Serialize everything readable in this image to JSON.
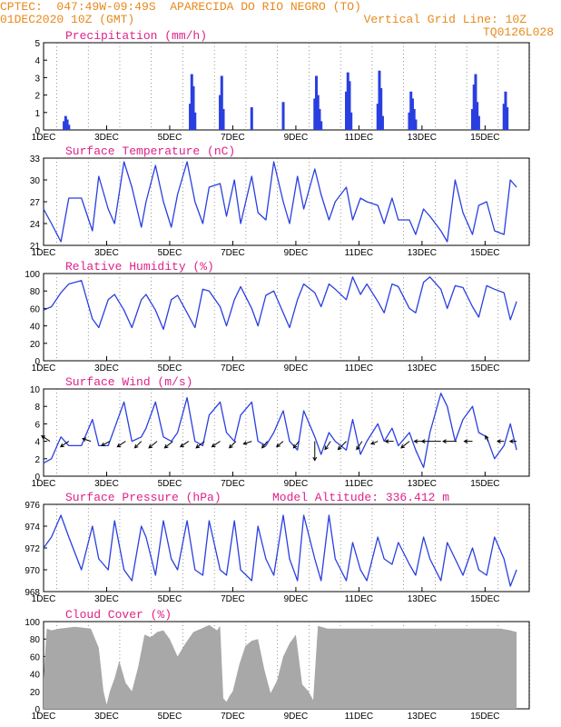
{
  "header": {
    "line1_left": "CPTEC:  047:49W-09:49S  APARECIDA DO RIO NEGRO (TO)",
    "line2_left": "01DEC2020 10Z (GMT)",
    "line2_right": "Vertical Grid Line: 10Z",
    "line3_right": "TQ0126L028"
  },
  "colors": {
    "header": "#e8891c",
    "title": "#e0218a",
    "series": "#2a3fe0",
    "cloud": "#a8a8a8"
  },
  "chart_data": [
    {
      "type": "bar",
      "title": "Precipitation (mm/h)",
      "ylim": [
        0,
        5
      ],
      "yticks": [
        "0",
        "1",
        "2",
        "3",
        "4",
        "5"
      ],
      "xticks": [
        "1DEC",
        "3DEC",
        "5DEC",
        "7DEC",
        "9DEC",
        "11DEC",
        "13DEC",
        "15DEC"
      ],
      "x": [
        1.65,
        1.7,
        1.75,
        1.8,
        5.65,
        5.7,
        5.75,
        5.8,
        6.6,
        6.65,
        6.7,
        7.6,
        8.6,
        9.6,
        9.65,
        9.7,
        9.75,
        9.8,
        10.6,
        10.65,
        10.7,
        10.75,
        11.6,
        11.65,
        11.7,
        11.75,
        12.6,
        12.65,
        12.7,
        12.75,
        12.8,
        14.6,
        14.65,
        14.7,
        14.75,
        14.8,
        15.6,
        15.65,
        15.7
      ],
      "values": [
        0.5,
        0.8,
        0.6,
        0.3,
        1.5,
        3.2,
        2.5,
        1.0,
        2.0,
        3.1,
        1.2,
        1.3,
        1.6,
        1.8,
        3.1,
        2.0,
        1.2,
        0.5,
        2.2,
        3.3,
        2.8,
        1.0,
        1.5,
        3.4,
        2.4,
        0.8,
        1.0,
        2.2,
        1.8,
        1.2,
        0.6,
        1.2,
        2.6,
        3.2,
        1.6,
        0.8,
        1.5,
        2.2,
        1.3
      ]
    },
    {
      "type": "line",
      "title": "Surface Temperature (nC)",
      "ylim": [
        21,
        33
      ],
      "yticks": [
        "21",
        "24",
        "27",
        "30",
        "33"
      ],
      "xticks": [
        "1DEC",
        "3DEC",
        "5DEC",
        "7DEC",
        "9DEC",
        "11DEC",
        "13DEC",
        "15DEC"
      ],
      "x": [
        1.0,
        1.25,
        1.55,
        1.8,
        2.2,
        2.55,
        2.75,
        3.05,
        3.25,
        3.55,
        3.8,
        4.1,
        4.25,
        4.55,
        4.8,
        5.05,
        5.25,
        5.55,
        5.8,
        6.05,
        6.25,
        6.6,
        6.8,
        7.05,
        7.25,
        7.6,
        7.8,
        8.05,
        8.3,
        8.6,
        8.8,
        9.05,
        9.25,
        9.6,
        9.8,
        10.05,
        10.25,
        10.6,
        10.8,
        11.05,
        11.25,
        11.6,
        11.8,
        12.05,
        12.25,
        12.6,
        12.8,
        13.05,
        13.25,
        13.6,
        13.8,
        14.05,
        14.3,
        14.6,
        14.8,
        15.05,
        15.3,
        15.6,
        15.8,
        16.0
      ],
      "values": [
        26,
        24,
        21.5,
        27.5,
        27.5,
        23,
        30.5,
        26,
        24,
        32.5,
        29,
        23.5,
        27,
        32,
        27,
        23.5,
        28,
        32.5,
        27,
        24,
        29,
        29.5,
        25,
        30,
        24,
        30.5,
        25.5,
        24.5,
        32.5,
        27,
        24,
        30.5,
        26,
        31.5,
        28,
        24.5,
        27,
        29,
        24.5,
        27.5,
        27,
        26.5,
        24,
        27.5,
        24.5,
        24.5,
        22.5,
        26,
        25,
        23,
        21.5,
        30,
        25.5,
        22.5,
        26.5,
        27,
        23,
        22.5,
        30,
        29
      ]
    },
    {
      "type": "line",
      "title": "Relative Humidity (%)",
      "ylim": [
        0,
        100
      ],
      "yticks": [
        "0",
        "20",
        "40",
        "60",
        "80",
        "100"
      ],
      "xticks": [
        "1DEC",
        "3DEC",
        "5DEC",
        "7DEC",
        "9DEC",
        "11DEC",
        "13DEC",
        "15DEC"
      ],
      "x": [
        1.0,
        1.25,
        1.55,
        1.8,
        2.2,
        2.55,
        2.75,
        3.05,
        3.25,
        3.55,
        3.8,
        4.1,
        4.25,
        4.55,
        4.8,
        5.05,
        5.25,
        5.55,
        5.8,
        6.05,
        6.25,
        6.6,
        6.8,
        7.05,
        7.25,
        7.6,
        7.8,
        8.05,
        8.3,
        8.6,
        8.8,
        9.05,
        9.25,
        9.6,
        9.8,
        10.05,
        10.25,
        10.6,
        10.8,
        11.05,
        11.25,
        11.6,
        11.8,
        12.05,
        12.25,
        12.6,
        12.8,
        13.05,
        13.25,
        13.6,
        13.8,
        14.05,
        14.3,
        14.6,
        14.8,
        15.05,
        15.3,
        15.6,
        15.8,
        16.0
      ],
      "values": [
        58,
        62,
        78,
        88,
        92,
        48,
        38,
        70,
        76,
        58,
        38,
        70,
        76,
        58,
        36,
        70,
        75,
        55,
        38,
        82,
        80,
        62,
        40,
        70,
        85,
        60,
        40,
        75,
        80,
        55,
        38,
        70,
        88,
        78,
        62,
        88,
        82,
        70,
        96,
        76,
        88,
        68,
        55,
        88,
        85,
        60,
        55,
        90,
        96,
        82,
        60,
        86,
        84,
        62,
        50,
        86,
        82,
        78,
        47,
        68
      ]
    },
    {
      "type": "line",
      "title": "Surface Wind (m/s)",
      "ylim": [
        0,
        10
      ],
      "yticks": [
        "0",
        "2",
        "4",
        "6",
        "8",
        "10"
      ],
      "xticks": [
        "1DEC",
        "3DEC",
        "5DEC",
        "7DEC",
        "9DEC",
        "11DEC",
        "13DEC",
        "15DEC"
      ],
      "x": [
        1.0,
        1.25,
        1.55,
        1.8,
        2.2,
        2.55,
        2.75,
        3.05,
        3.25,
        3.55,
        3.8,
        4.1,
        4.25,
        4.55,
        4.8,
        5.05,
        5.25,
        5.55,
        5.8,
        6.05,
        6.25,
        6.6,
        6.8,
        7.05,
        7.25,
        7.6,
        7.8,
        8.05,
        8.3,
        8.6,
        8.8,
        9.05,
        9.25,
        9.6,
        9.8,
        10.05,
        10.25,
        10.6,
        10.8,
        11.05,
        11.25,
        11.6,
        11.8,
        12.05,
        12.25,
        12.6,
        12.8,
        13.05,
        13.25,
        13.6,
        13.8,
        14.05,
        14.3,
        14.6,
        14.8,
        15.05,
        15.3,
        15.6,
        15.8,
        16.0
      ],
      "values": [
        1.5,
        2,
        4.5,
        3.5,
        3.5,
        6.5,
        3.5,
        3.5,
        5.5,
        8.5,
        4,
        4.5,
        5.5,
        8.5,
        4.5,
        4,
        5,
        9,
        4,
        3.5,
        7,
        8.5,
        5,
        4,
        7,
        8.5,
        4,
        3.5,
        5,
        7.5,
        4,
        3,
        7.5,
        4.5,
        2.5,
        5,
        4,
        3,
        6.5,
        2.5,
        4,
        6,
        4,
        5.5,
        3.5,
        5,
        3,
        1,
        5,
        9.5,
        8,
        4,
        6.5,
        8,
        5,
        4.5,
        2,
        3.5,
        6,
        3
      ],
      "arrows_x": [
        1.2,
        1.8,
        2.5,
        3.1,
        3.6,
        4.1,
        4.6,
        5.1,
        5.6,
        6.1,
        6.6,
        7.1,
        7.6,
        8.1,
        8.6,
        9.1,
        9.6,
        10.1,
        10.6,
        11.1,
        11.6,
        12.1,
        12.6,
        13.1,
        13.6,
        14.1,
        14.6,
        15.1,
        15.6,
        16.0
      ],
      "arrows_u": [
        -1.5,
        -1.5,
        -1.5,
        -1.5,
        -1.5,
        -1.2,
        -1.5,
        -1.5,
        -1.5,
        -1.5,
        -1.5,
        -1.2,
        -1.5,
        -1.0,
        -1.2,
        -1.0,
        0,
        -1.0,
        -1.5,
        -1.0,
        -1.2,
        -1.5,
        -1.5,
        -2.0,
        -3.5,
        -2.5,
        -1.5,
        -0.5,
        -1.2,
        -1.2
      ],
      "arrows_v": [
        1.0,
        -1.0,
        0.5,
        -0.8,
        -1.0,
        -1.2,
        -1.2,
        -1.2,
        -1.0,
        -1.2,
        -1.0,
        -1.2,
        -0.5,
        -1.2,
        -1.0,
        -1.2,
        -3.5,
        -1.5,
        -1.5,
        -1.5,
        -0.5,
        0,
        -1.2,
        0,
        0,
        0,
        0,
        1.0,
        0,
        0
      ]
    },
    {
      "type": "line",
      "title": "Surface Pressure (hPa)",
      "annotation": "Model Altitude: 336.412  m",
      "ylim": [
        968,
        976
      ],
      "yticks": [
        "968",
        "970",
        "972",
        "974",
        "976"
      ],
      "xticks": [
        "1DEC",
        "3DEC",
        "5DEC",
        "7DEC",
        "9DEC",
        "11DEC",
        "13DEC",
        "15DEC"
      ],
      "x": [
        1.0,
        1.25,
        1.55,
        1.8,
        2.2,
        2.55,
        2.75,
        3.05,
        3.25,
        3.55,
        3.8,
        4.1,
        4.25,
        4.55,
        4.8,
        5.05,
        5.25,
        5.55,
        5.8,
        6.05,
        6.25,
        6.6,
        6.8,
        7.05,
        7.25,
        7.6,
        7.8,
        8.05,
        8.3,
        8.6,
        8.8,
        9.05,
        9.25,
        9.6,
        9.8,
        10.05,
        10.25,
        10.6,
        10.8,
        11.05,
        11.25,
        11.6,
        11.8,
        12.05,
        12.25,
        12.6,
        12.8,
        13.05,
        13.25,
        13.6,
        13.8,
        14.05,
        14.3,
        14.6,
        14.8,
        15.05,
        15.3,
        15.6,
        15.8,
        16.0
      ],
      "values": [
        972,
        973,
        975,
        973,
        970,
        974,
        971,
        970,
        974.5,
        970,
        969,
        974,
        973,
        969.5,
        974.5,
        971,
        970,
        974.5,
        970,
        969.5,
        974.5,
        970,
        969.5,
        974.5,
        970,
        969,
        974,
        971,
        969.5,
        975,
        971,
        969,
        975,
        971,
        969,
        975,
        971,
        969,
        972.5,
        970,
        969,
        973,
        971,
        970.5,
        972.5,
        970.5,
        969.5,
        973,
        971,
        969,
        972.5,
        971,
        969.5,
        972,
        970,
        969.5,
        973,
        971,
        968.5,
        970
      ]
    },
    {
      "type": "area",
      "title": "Cloud Cover (%)",
      "ylim": [
        0,
        100
      ],
      "yticks": [
        "0",
        "20",
        "40",
        "60",
        "80",
        "100"
      ],
      "xticks": [
        "1DEC",
        "3DEC",
        "5DEC",
        "7DEC",
        "9DEC",
        "11DEC",
        "13DEC",
        "15DEC"
      ],
      "x": [
        1.0,
        1.1,
        1.25,
        1.5,
        2.0,
        2.5,
        2.75,
        2.9,
        3.0,
        3.1,
        3.25,
        3.4,
        3.6,
        3.8,
        4.0,
        4.2,
        4.4,
        4.6,
        4.8,
        5.0,
        5.25,
        5.5,
        5.75,
        6.0,
        6.25,
        6.5,
        6.6,
        6.7,
        6.8,
        6.9,
        7.0,
        7.2,
        7.4,
        7.6,
        7.8,
        8.0,
        8.2,
        8.4,
        8.6,
        8.8,
        9.0,
        9.2,
        9.4,
        9.55,
        9.7,
        10.0,
        11.0,
        12.0,
        13.0,
        14.0,
        15.0,
        15.5,
        15.8,
        16.0
      ],
      "values": [
        35,
        92,
        90,
        92,
        94,
        92,
        70,
        20,
        5,
        20,
        35,
        55,
        30,
        20,
        48,
        85,
        82,
        88,
        90,
        80,
        60,
        75,
        88,
        92,
        96,
        90,
        95,
        12,
        8,
        15,
        20,
        50,
        72,
        78,
        80,
        45,
        18,
        32,
        60,
        75,
        85,
        28,
        20,
        10,
        95,
        92,
        92,
        92,
        92,
        92,
        92,
        92,
        90,
        88
      ]
    }
  ]
}
